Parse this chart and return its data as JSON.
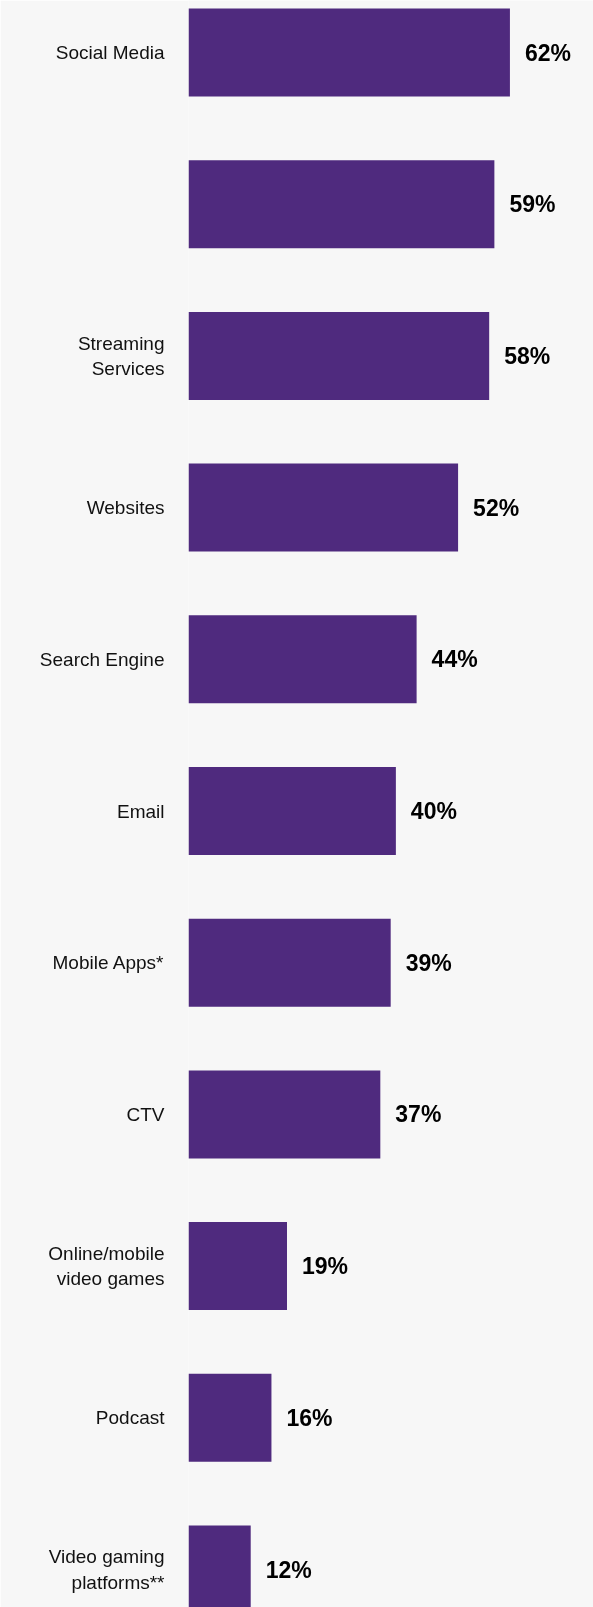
{
  "chart_data": {
    "type": "bar",
    "orientation": "horizontal",
    "categories": [
      "Social Media",
      null,
      "Streaming Services",
      "Websites",
      "Search Engine",
      "Email",
      "Mobile Apps*",
      "CTV",
      "Online/mobile video games",
      "Podcast",
      "Video gaming platforms**"
    ],
    "values": [
      62,
      59,
      58,
      52,
      44,
      40,
      39,
      37,
      19,
      16,
      12
    ],
    "value_labels": [
      "62%",
      "59%",
      "58%",
      "52%",
      "44%",
      "40%",
      "39%",
      "37%",
      "19%",
      "16%",
      "12%"
    ],
    "color": "#4f2a7e"
  }
}
